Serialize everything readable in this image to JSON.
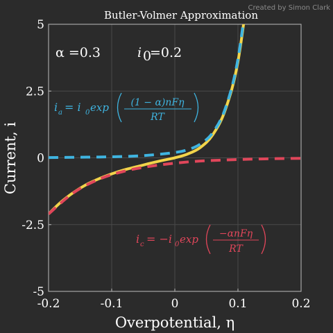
{
  "chart_data": {
    "type": "line",
    "title": "Butler-Volmer Approximation",
    "xlabel": "Overpotential, η",
    "ylabel": "Current, i",
    "xlim": [
      -0.2,
      0.2
    ],
    "ylim": [
      -5,
      5
    ],
    "x_ticks": [
      "-0.2",
      "-0.1",
      "0",
      "0.1",
      "0.2"
    ],
    "y_ticks": [
      "-5",
      "-2.5",
      "0",
      "2.5",
      "5"
    ],
    "grid": true,
    "parameters": {
      "alpha": "α =0.3",
      "i0": "=0.2"
    },
    "series": [
      {
        "color": "#f2d44a",
        "style": "solid",
        "x": [
          -0.2,
          -0.18,
          -0.16,
          -0.14,
          -0.12,
          -0.1,
          -0.08,
          -0.06,
          -0.04,
          -0.02,
          0,
          0.02,
          0.04,
          0.06,
          0.08,
          0.1,
          0.12
        ],
        "values": [
          -2.1,
          -1.65,
          -1.29,
          -1.0,
          -0.78,
          -0.6,
          -0.45,
          -0.33,
          -0.21,
          -0.1,
          0,
          0.14,
          0.38,
          0.86,
          1.8,
          3.6,
          7.0
        ]
      },
      {
        "color": "#3fb4e0",
        "style": "dashed",
        "x": [
          -0.2,
          -0.16,
          -0.12,
          -0.08,
          -0.04,
          0,
          0.02,
          0.04,
          0.06,
          0.08,
          0.1,
          0.12
        ],
        "values": [
          0.01,
          0.02,
          0.03,
          0.05,
          0.1,
          0.2,
          0.3,
          0.51,
          0.94,
          1.85,
          3.7,
          7.2
        ]
      },
      {
        "color": "#e0465a",
        "style": "dashed",
        "x": [
          -0.2,
          -0.16,
          -0.12,
          -0.08,
          -0.04,
          0,
          0.04,
          0.08,
          0.12,
          0.16,
          0.2
        ],
        "values": [
          -2.1,
          -1.3,
          -0.8,
          -0.5,
          -0.32,
          -0.2,
          -0.12,
          -0.08,
          -0.05,
          -0.03,
          -0.02
        ]
      }
    ],
    "annotations": {
      "anodic": {
        "lhs": "i",
        "lhs_sub": "a",
        "rhs_prefix": "= i",
        "rhs_sub": "0",
        "func": "exp",
        "numerator": "(1 − α)nFη",
        "denominator": "RT"
      },
      "cathodic": {
        "lhs": "i",
        "lhs_sub": "c",
        "rhs_prefix": "= −i",
        "rhs_sub": "0",
        "func": "exp",
        "numerator": "−αnFη",
        "denominator": "RT"
      }
    },
    "credit": "Created by Simon Clark"
  }
}
